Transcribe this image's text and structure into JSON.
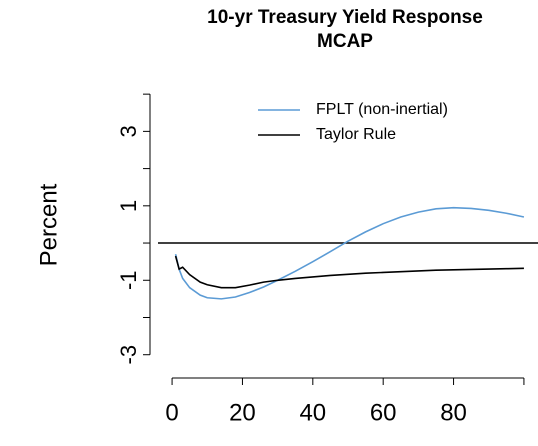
{
  "chart_data": {
    "type": "line",
    "title": "10-yr Treasury Yield Response",
    "subtitle": "MCAP",
    "y_label": "Percent",
    "x": [
      1,
      2,
      3,
      5,
      8,
      10,
      14,
      18,
      22,
      26,
      30,
      35,
      40,
      45,
      50,
      55,
      60,
      65,
      70,
      75,
      80,
      85,
      90,
      95,
      100
    ],
    "series": [
      {
        "name": "FPLT (non-inertial)",
        "color": "#5b9bd5",
        "values": [
          -0.3,
          -0.7,
          -0.95,
          -1.2,
          -1.4,
          -1.47,
          -1.5,
          -1.45,
          -1.33,
          -1.18,
          -1.0,
          -0.76,
          -0.5,
          -0.23,
          0.05,
          0.3,
          0.52,
          0.7,
          0.83,
          0.92,
          0.95,
          0.93,
          0.88,
          0.8,
          0.7
        ]
      },
      {
        "name": "Taylor Rule",
        "color": "#000000",
        "values": [
          -0.35,
          -0.7,
          -0.65,
          -0.85,
          -1.05,
          -1.12,
          -1.2,
          -1.2,
          -1.13,
          -1.05,
          -1.0,
          -0.95,
          -0.91,
          -0.87,
          -0.84,
          -0.81,
          -0.79,
          -0.77,
          -0.75,
          -0.73,
          -0.72,
          -0.71,
          -0.7,
          -0.69,
          -0.68
        ]
      }
    ],
    "xlim": [
      -4,
      104
    ],
    "xticks": [
      0,
      20,
      40,
      60,
      80
    ],
    "xminor_ticks": [
      100
    ],
    "ylim": [
      -3.33,
      4.38
    ],
    "yticks": [
      -3,
      -1,
      1,
      3
    ],
    "yminor_ticks": [
      -2,
      0,
      2,
      4
    ],
    "hline": 0,
    "legend": "top-right",
    "grid": false
  }
}
